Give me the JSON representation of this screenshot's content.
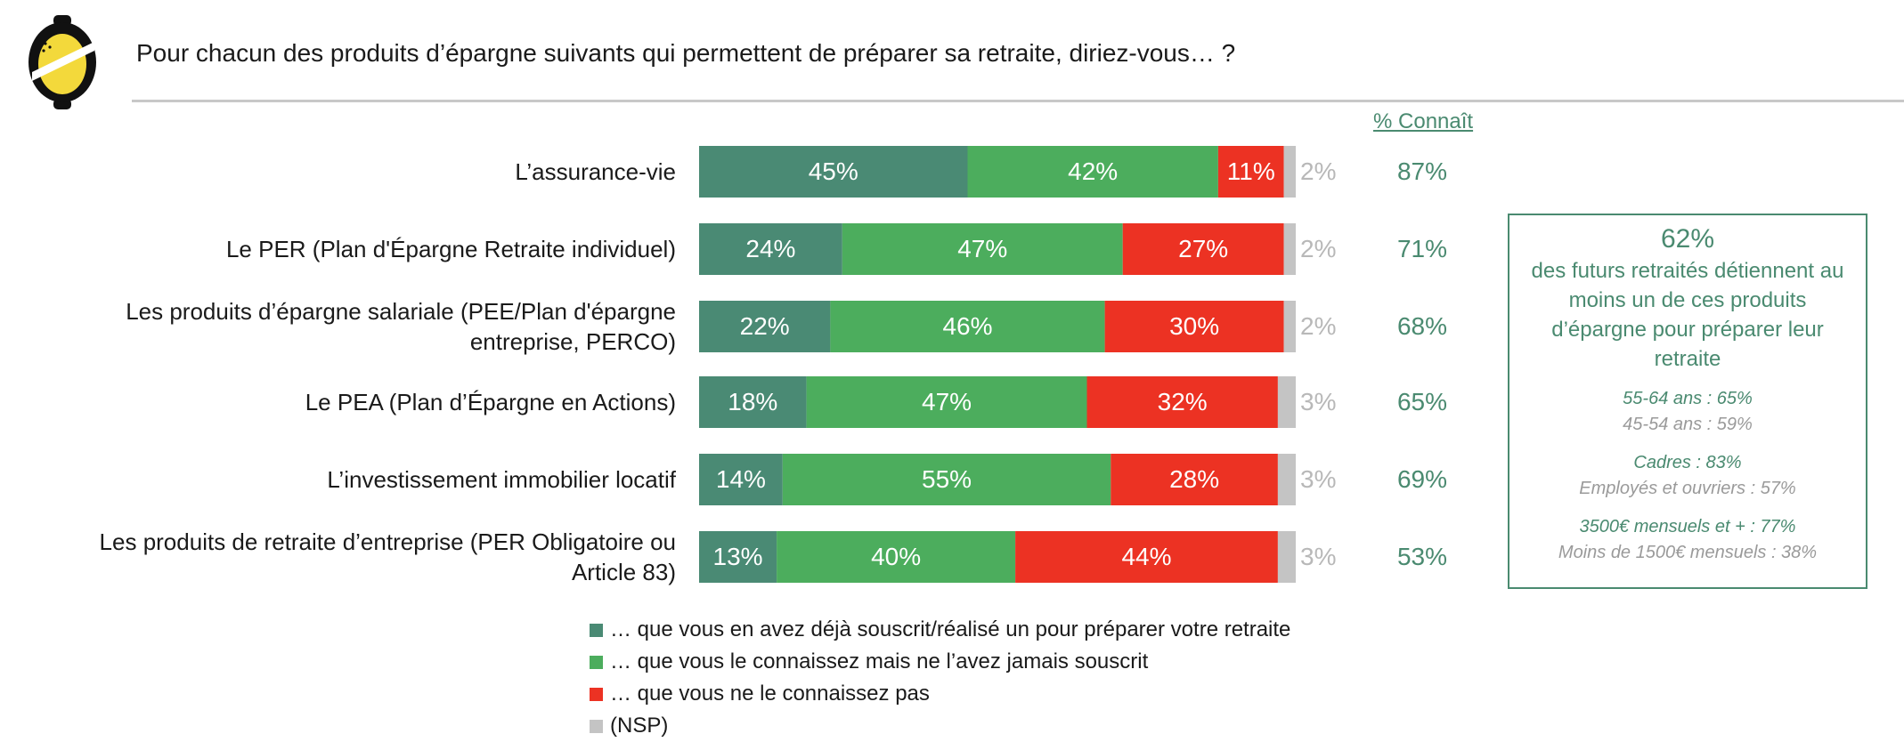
{
  "title": "Pour chacun des produits d’épargne suivants qui permettent de préparer sa retraite, diriez-vous… ?",
  "connait_header": "% Connaît",
  "colors": {
    "souscrit": "#4a8a74",
    "connait": "#4cad5d",
    "ne_connait_pas": "#ec3223",
    "nsp": "#c4c4c4",
    "accent": "#4a8a70"
  },
  "chart_data": {
    "type": "bar",
    "orientation": "horizontal",
    "stacked": true,
    "categories": [
      "L’assurance-vie",
      "Le PER (Plan d'Épargne Retraite individuel)",
      "Les produits d’épargne salariale (PEE/Plan d'épargne entreprise, PERCO)",
      "Le PEA (Plan d’Épargne en Actions)",
      "L’investissement immobilier locatif",
      "Les produits de retraite d’entreprise (PER Obligatoire ou Article 83)"
    ],
    "series": [
      {
        "name": "… que vous en avez déjà souscrit/réalisé un pour préparer votre retraite",
        "values": [
          45,
          24,
          22,
          18,
          14,
          13
        ]
      },
      {
        "name": "… que vous le connaissez mais ne l’avez jamais souscrit",
        "values": [
          42,
          47,
          46,
          47,
          55,
          40
        ]
      },
      {
        "name": "… que vous ne le connaissez pas",
        "values": [
          11,
          27,
          30,
          32,
          28,
          44
        ]
      },
      {
        "name": "(NSP)",
        "values": [
          2,
          2,
          2,
          3,
          3,
          3
        ]
      }
    ],
    "connait_pct": [
      87,
      71,
      68,
      65,
      69,
      53
    ],
    "unit": "%",
    "legend_position": "bottom"
  },
  "infobox": {
    "headline": "62%",
    "description": "des futurs retraités détiennent au moins un de ces produits d’épargne pour préparer leur retraite",
    "groups": [
      [
        {
          "text": "55-64 ans : 65%",
          "emph": true
        },
        {
          "text": "45-54 ans : 59%",
          "emph": false
        }
      ],
      [
        {
          "text": "Cadres : 83%",
          "emph": true
        },
        {
          "text": "Employés et ouvriers : 57%",
          "emph": false
        }
      ],
      [
        {
          "text": "3500€ mensuels et + : 77%",
          "emph": true
        },
        {
          "text": "Moins de 1500€ mensuels : 38%",
          "emph": false
        }
      ]
    ]
  }
}
